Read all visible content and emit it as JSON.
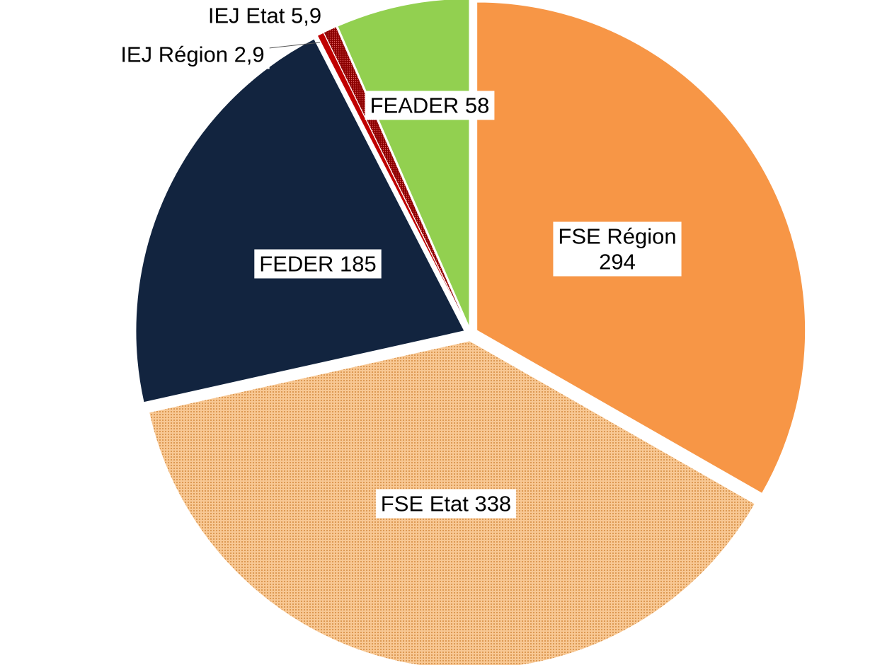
{
  "chart_data": {
    "type": "pie",
    "start_angle_deg": 0,
    "direction": "clockwise",
    "exploded": true,
    "slices": [
      {
        "name": "FSE Région",
        "value": 294,
        "label": [
          "FSE Région",
          "294"
        ],
        "color": "#F79646",
        "pattern": "solid"
      },
      {
        "name": "FSE Etat",
        "value": 338,
        "label": [
          "FSE Etat 338"
        ],
        "color": "#F3B16C",
        "pattern": "dotted"
      },
      {
        "name": "FEDER",
        "value": 185,
        "label": [
          "FEDER 185"
        ],
        "color": "#12243F",
        "pattern": "solid"
      },
      {
        "name": "IEJ Région",
        "value": 2.9,
        "label": [
          "IEJ Région 2,9"
        ],
        "color": "#C00000",
        "pattern": "solid"
      },
      {
        "name": "IEJ Etat",
        "value": 5.9,
        "label": [
          "IEJ Etat 5,9"
        ],
        "color": "#A31515",
        "pattern": "dotted"
      },
      {
        "name": "FEADER",
        "value": 58,
        "label": [
          "FEADER 58"
        ],
        "color": "#92D050",
        "pattern": "solid"
      }
    ]
  }
}
